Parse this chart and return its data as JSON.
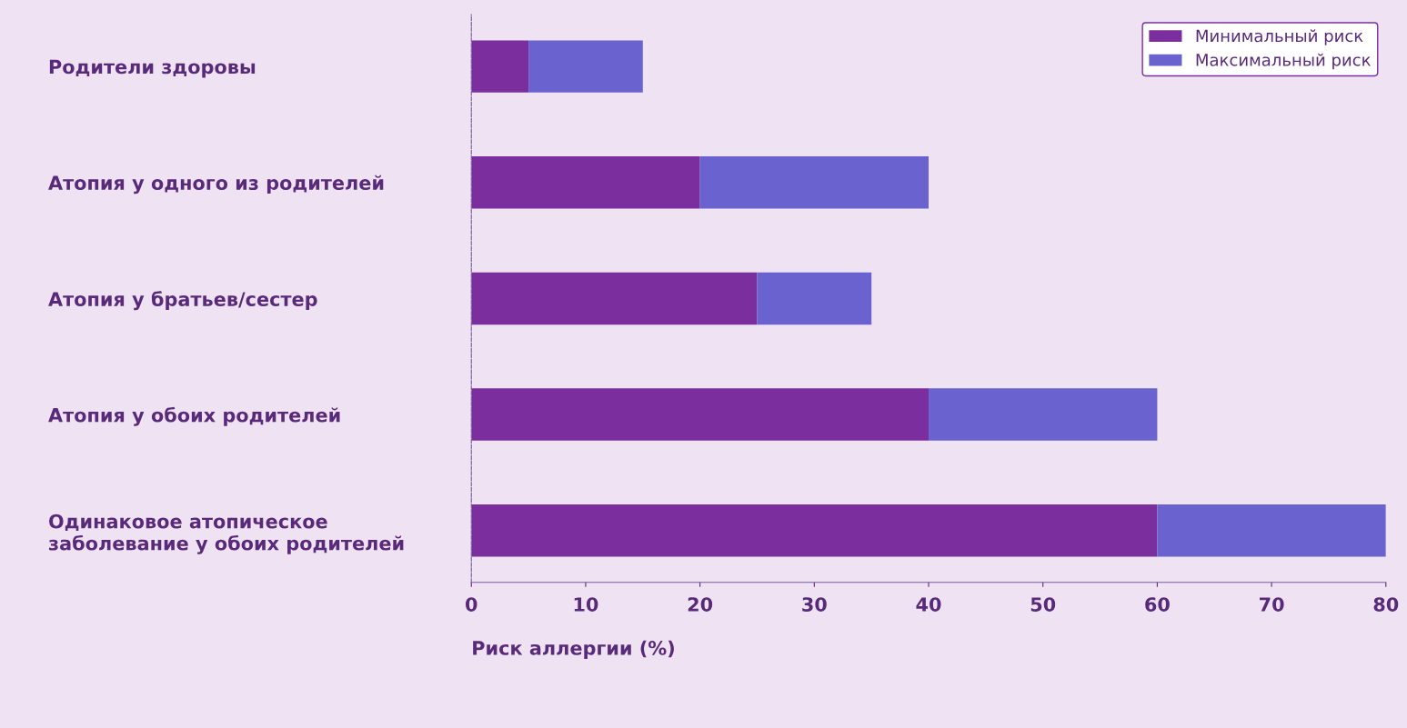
{
  "chart_data": {
    "type": "bar",
    "orientation": "horizontal",
    "stacked": true,
    "categories": [
      "Родители здоровы",
      "Атопия у одного из родителей",
      "Атопия у братьев/сестер",
      "Атопия у обоих родителей",
      "Одинаковое атопическое\nзаболевание у обоих родителей"
    ],
    "series": [
      {
        "name": "Минимальный риск",
        "color": "#7b2f9e",
        "values": [
          5,
          20,
          25,
          40,
          60
        ]
      },
      {
        "name": "Максимальный риск",
        "color": "#6a63cf",
        "values": [
          10,
          20,
          10,
          20,
          20
        ]
      }
    ],
    "xlabel": "Риск аллергии (%)",
    "xlim": [
      0,
      80
    ],
    "xticks": [
      0,
      10,
      20,
      30,
      40,
      50,
      60,
      70,
      80
    ],
    "legend": "top right",
    "grid": false
  }
}
